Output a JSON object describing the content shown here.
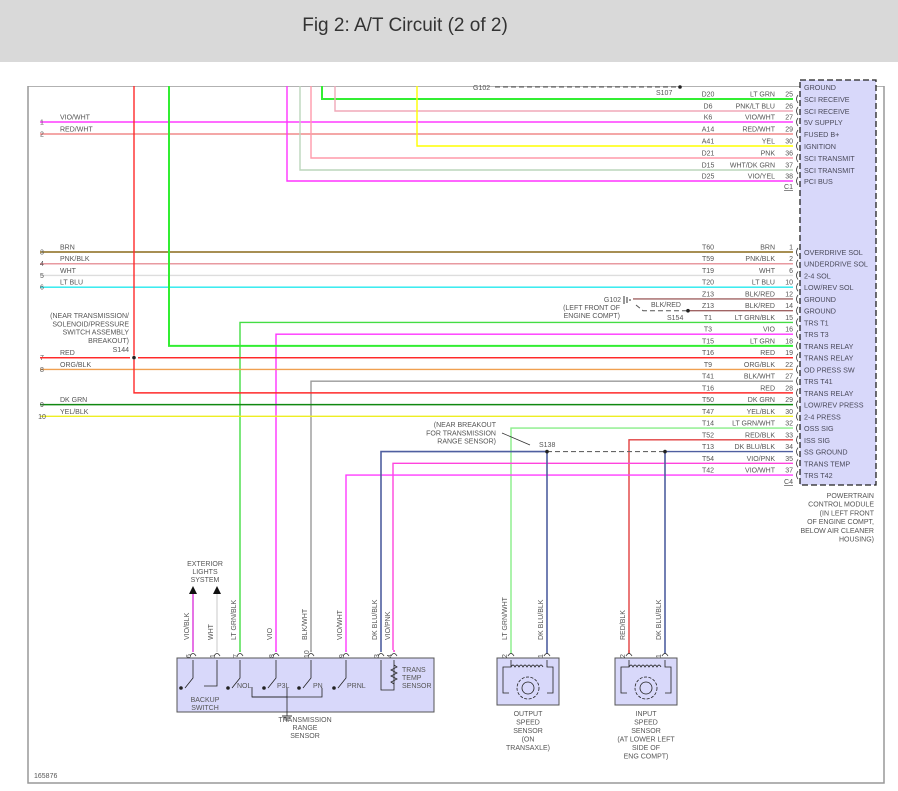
{
  "header": {
    "title": "Fig 2: A/T Circuit (2 of 2)"
  },
  "figure_id": "165876",
  "colors": {
    "LT GRN": "#33ee33",
    "PNK/LT BLU": "#f0a8b8",
    "VIO/WHT": "#ff3cff",
    "RED/WHT": "#f08a8a",
    "YEL": "#ffff00",
    "PNK": "#ff9aaa",
    "WHT/DK GRN": "#bcd6bc",
    "VIO/YEL": "#ff33ff",
    "BRN": "#8a6a1a",
    "PNK/BLK": "#e89aa0",
    "WHT": "#dddddd",
    "LT BLU": "#22e8ee",
    "BLK/RED": "#a06464",
    "LT GRN/BLK": "#44dd44",
    "VIO": "#ff33ff",
    "RED": "#ff2a2a",
    "ORG/BLK": "#f0a050",
    "BLK/WHT": "#9a9a9a",
    "DK GRN": "#118811",
    "YEL/BLK": "#eeee22",
    "LT GRN/WHT": "#88ee88",
    "RED/BLK": "#e04040",
    "DK BLU/BLK": "#4f5fa0",
    "VIO/PNK": "#ff44dd",
    "VIO/BLK": "#e050e0",
    "module_fill": "#d8d8fa",
    "frame": "#999999"
  },
  "pcm": {
    "top_function": "GROUND",
    "connector_c1": "C1",
    "connector_c4": "C4",
    "name_lines": [
      "POWERTRAIN",
      "CONTROL MODULE",
      "(IN LEFT FRONT",
      "OF ENGINE COMPT,",
      "BELOW AIR CLEANER",
      "HOUSING)"
    ],
    "c1_pins": [
      {
        "pin": "25",
        "circuit": "D20",
        "wire": "LT GRN",
        "function": "SCI RECEIVE"
      },
      {
        "pin": "26",
        "circuit": "D6",
        "wire": "PNK/LT BLU",
        "function": "SCI RECEIVE"
      },
      {
        "pin": "27",
        "circuit": "K6",
        "wire": "VIO/WHT",
        "function": "5V SUPPLY"
      },
      {
        "pin": "29",
        "circuit": "A14",
        "wire": "RED/WHT",
        "function": "FUSED B+"
      },
      {
        "pin": "30",
        "circuit": "A41",
        "wire": "YEL",
        "function": "IGNITION"
      },
      {
        "pin": "36",
        "circuit": "D21",
        "wire": "PNK",
        "function": "SCI TRANSMIT"
      },
      {
        "pin": "37",
        "circuit": "D15",
        "wire": "WHT/DK GRN",
        "function": "SCI TRANSMIT"
      },
      {
        "pin": "38",
        "circuit": "D25",
        "wire": "VIO/YEL",
        "function": "PCI BUS"
      }
    ],
    "c4_pins": [
      {
        "pin": "1",
        "circuit": "T60",
        "wire": "BRN",
        "function": "OVERDRIVE SOL"
      },
      {
        "pin": "2",
        "circuit": "T59",
        "wire": "PNK/BLK",
        "function": "UNDERDRIVE SOL"
      },
      {
        "pin": "6",
        "circuit": "T19",
        "wire": "WHT",
        "function": "2-4 SOL"
      },
      {
        "pin": "10",
        "circuit": "T20",
        "wire": "LT BLU",
        "function": "LOW/REV SOL"
      },
      {
        "pin": "12",
        "circuit": "Z13",
        "wire": "BLK/RED",
        "function": "GROUND"
      },
      {
        "pin": "14",
        "circuit": "Z13",
        "wire": "BLK/RED",
        "function": "GROUND"
      },
      {
        "pin": "15",
        "circuit": "T1",
        "wire": "LT GRN/BLK",
        "function": "TRS T1"
      },
      {
        "pin": "16",
        "circuit": "T3",
        "wire": "VIO",
        "function": "TRS T3"
      },
      {
        "pin": "18",
        "circuit": "T15",
        "wire": "LT GRN",
        "function": "TRANS RELAY"
      },
      {
        "pin": "19",
        "circuit": "T16",
        "wire": "RED",
        "function": "TRANS RELAY"
      },
      {
        "pin": "22",
        "circuit": "T9",
        "wire": "ORG/BLK",
        "function": "OD PRESS SW"
      },
      {
        "pin": "27",
        "circuit": "T41",
        "wire": "BLK/WHT",
        "function": "TRS T41"
      },
      {
        "pin": "28",
        "circuit": "T16",
        "wire": "RED",
        "function": "TRANS RELAY"
      },
      {
        "pin": "29",
        "circuit": "T50",
        "wire": "DK GRN",
        "function": "LOW/REV PRESS"
      },
      {
        "pin": "30",
        "circuit": "T47",
        "wire": "YEL/BLK",
        "function": "2-4 PRESS"
      },
      {
        "pin": "32",
        "circuit": "T14",
        "wire": "LT GRN/WHT",
        "function": "OSS SIG"
      },
      {
        "pin": "33",
        "circuit": "T52",
        "wire": "RED/BLK",
        "function": "ISS SIG"
      },
      {
        "pin": "34",
        "circuit": "T13",
        "wire": "DK BLU/BLK",
        "function": "SS GROUND"
      },
      {
        "pin": "35",
        "circuit": "T54",
        "wire": "VIO/PNK",
        "function": "TRANS TEMP"
      },
      {
        "pin": "37",
        "circuit": "T42",
        "wire": "VIO/WHT",
        "function": "TRS T42"
      }
    ]
  },
  "left_wires": [
    {
      "num": "1",
      "wire": "VIO/WHT"
    },
    {
      "num": "2",
      "wire": "RED/WHT"
    },
    {
      "num": "3",
      "wire": "BRN"
    },
    {
      "num": "4",
      "wire": "PNK/BLK"
    },
    {
      "num": "5",
      "wire": "WHT"
    },
    {
      "num": "6",
      "wire": "LT BLU"
    },
    {
      "num": "7",
      "wire": "RED"
    },
    {
      "num": "8",
      "wire": "ORG/BLK"
    },
    {
      "num": "9",
      "wire": "DK GRN"
    },
    {
      "num": "10",
      "wire": "YEL/BLK"
    }
  ],
  "splices": {
    "g102_top": "G102",
    "s107": "S107",
    "g102": "G102",
    "g102_note": [
      "(LEFT FRONT OF",
      "ENGINE COMPT)"
    ],
    "s154_wire": "BLK/RED",
    "s154": "S154",
    "s144": "S144",
    "s144_note": [
      "(NEAR TRANSMISSION/",
      "SOLENOID/PRESSURE",
      "SWITCH ASSEMBLY",
      "BREAKOUT)"
    ],
    "s138": "S138",
    "s138_note": [
      "(NEAR BREAKOUT",
      "FOR TRANSMISSION",
      "RANGE SENSOR)"
    ]
  },
  "trs": {
    "exterior": [
      "EXTERIOR",
      "LIGHTS",
      "SYSTEM"
    ],
    "pins": [
      {
        "pin": "6",
        "wire": "VIO/BLK"
      },
      {
        "pin": "1",
        "wire": "WHT"
      },
      {
        "pin": "7",
        "wire": "LT GRN/BLK"
      },
      {
        "pin": "8",
        "wire": "VIO"
      },
      {
        "pin": "10",
        "wire": "BLK/WHT"
      },
      {
        "pin": "9",
        "wire": "VIO/WHT"
      },
      {
        "pin": "3",
        "wire": "DK BLU/BLK"
      },
      {
        "pin": "4",
        "wire": "VIO/PNK"
      }
    ],
    "switch_labels": [
      "NOL",
      "P3L",
      "PN",
      "PRNL"
    ],
    "backup_switch": [
      "BACKUP",
      "SWITCH"
    ],
    "temp_sensor": [
      "TRANS",
      "TEMP",
      "SENSOR"
    ],
    "name": [
      "TRANSMISSION",
      "RANGE",
      "SENSOR"
    ]
  },
  "oss": {
    "pins": [
      {
        "pin": "2",
        "wire": "LT GRN/WHT"
      },
      {
        "pin": "1",
        "wire": "DK BLU/BLK"
      }
    ],
    "name": [
      "OUTPUT",
      "SPEED",
      "SENSOR",
      "(ON",
      "TRANSAXLE)"
    ]
  },
  "iss": {
    "pins": [
      {
        "pin": "2",
        "wire": "RED/BLK"
      },
      {
        "pin": "1",
        "wire": "DK BLU/BLK"
      }
    ],
    "name": [
      "INPUT",
      "SPEED",
      "SENSOR",
      "(AT LOWER LEFT",
      "SIDE OF",
      "ENG COMPT)"
    ]
  }
}
